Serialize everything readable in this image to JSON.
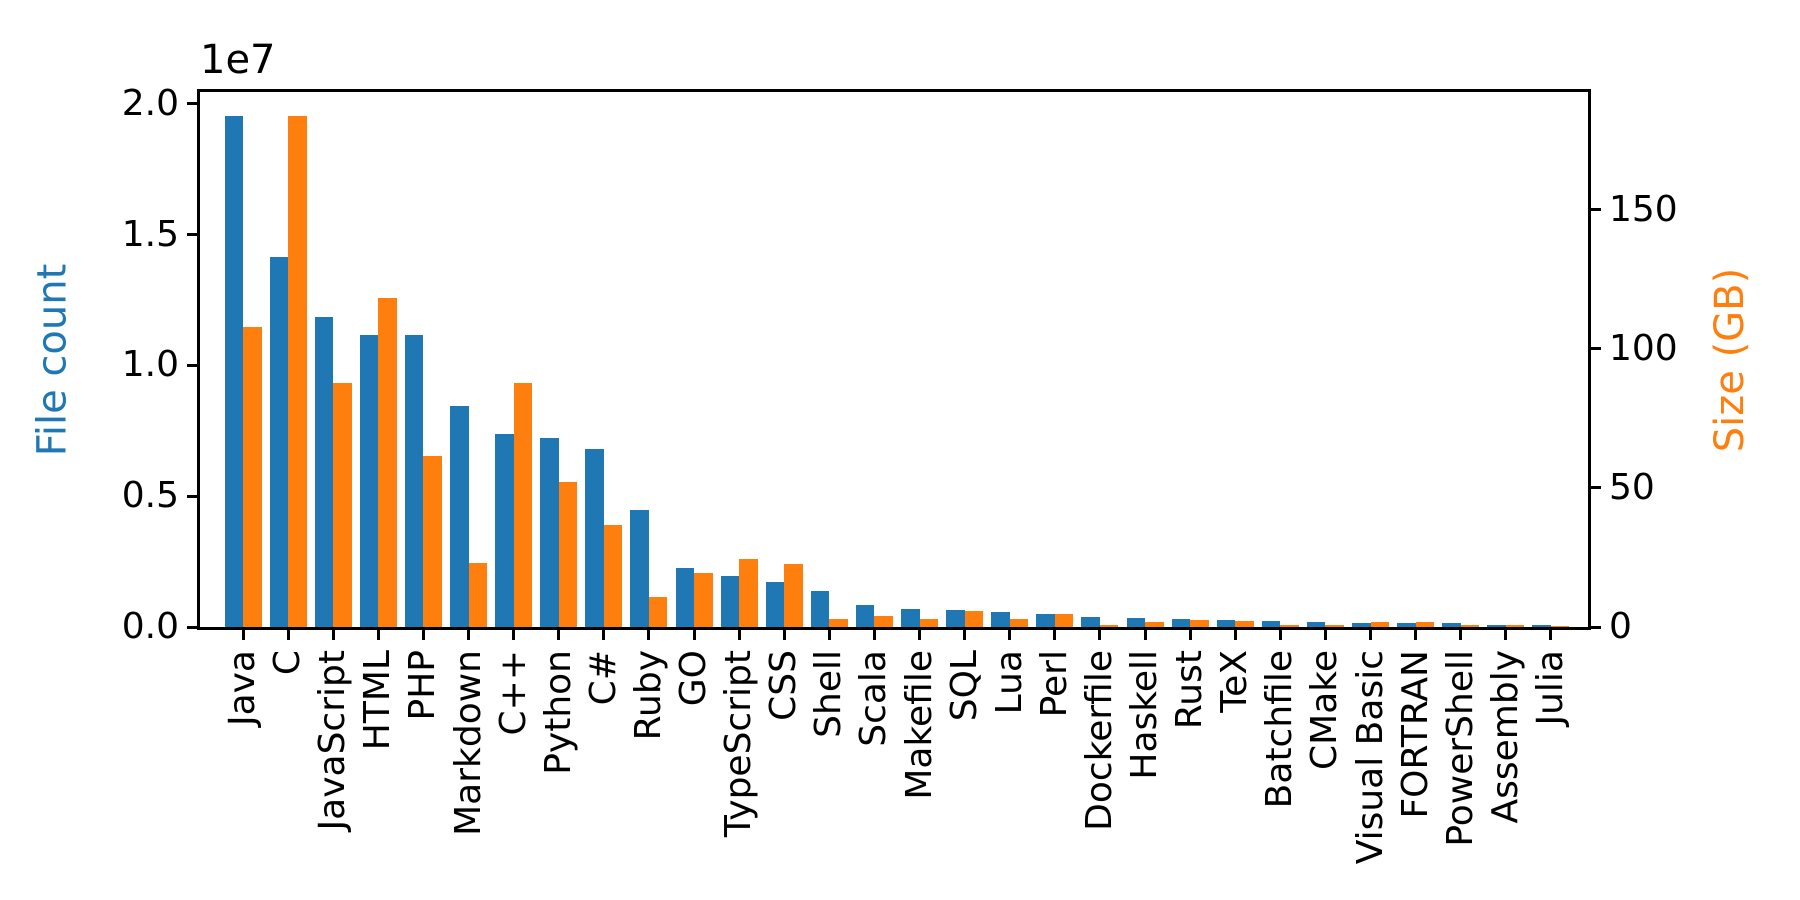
{
  "chart_data": {
    "type": "bar",
    "categories": [
      "Java",
      "C",
      "JavaScript",
      "HTML",
      "PHP",
      "Markdown",
      "C++",
      "Python",
      "C#",
      "Ruby",
      "GO",
      "TypeScript",
      "CSS",
      "Shell",
      "Scala",
      "Makefile",
      "SQL",
      "Lua",
      "Perl",
      "Dockerfile",
      "Haskell",
      "Rust",
      "TeX",
      "Batchfile",
      "CMake",
      "Visual Basic",
      "FORTRAN",
      "PowerShell",
      "Assembly",
      "Julia"
    ],
    "series": [
      {
        "name": "File count",
        "axis": "left",
        "color": "#1f77b4",
        "values": [
          19548190,
          14143113,
          11839883,
          11178557,
          11177610,
          8464626,
          7380520,
          7226626,
          6811652,
          4473331,
          2265436,
          1940406,
          1734406,
          1385648,
          835755,
          679430,
          656671,
          578554,
          497949,
          366505,
          340623,
          322431,
          251015,
          236945,
          175282,
          155652,
          142038,
          136846,
          82905,
          58317
        ]
      },
      {
        "name": "Size (GB)",
        "axis": "right",
        "color": "#ff7f0e",
        "values": [
          107.7,
          183.83,
          87.82,
          118.12,
          61.41,
          23.09,
          87.73,
          52.03,
          36.83,
          10.95,
          19.28,
          24.59,
          22.67,
          3.01,
          3.87,
          2.92,
          5.67,
          2.81,
          4.7,
          0.71,
          1.85,
          2.68,
          2.15,
          0.7,
          0.54,
          1.91,
          1.62,
          0.69,
          0.78,
          0.29
        ]
      }
    ],
    "left_axis": {
      "label": "File count",
      "color": "#1f77b4",
      "offset_text": "1e7",
      "tick_labels": [
        "0.0",
        "0.5",
        "1.0",
        "1.5",
        "2.0"
      ],
      "tick_values": [
        0,
        5000000,
        10000000,
        15000000,
        20000000
      ],
      "ylim": [
        0,
        20450000
      ]
    },
    "right_axis": {
      "label": "Size (GB)",
      "color": "#ff7f0e",
      "tick_labels": [
        "0",
        "50",
        "100",
        "150"
      ],
      "tick_values": [
        0,
        50,
        100,
        150
      ],
      "ylim": [
        0,
        192.3
      ]
    },
    "legend": "none",
    "grid": false,
    "x_tick_label_rotation": 90
  }
}
